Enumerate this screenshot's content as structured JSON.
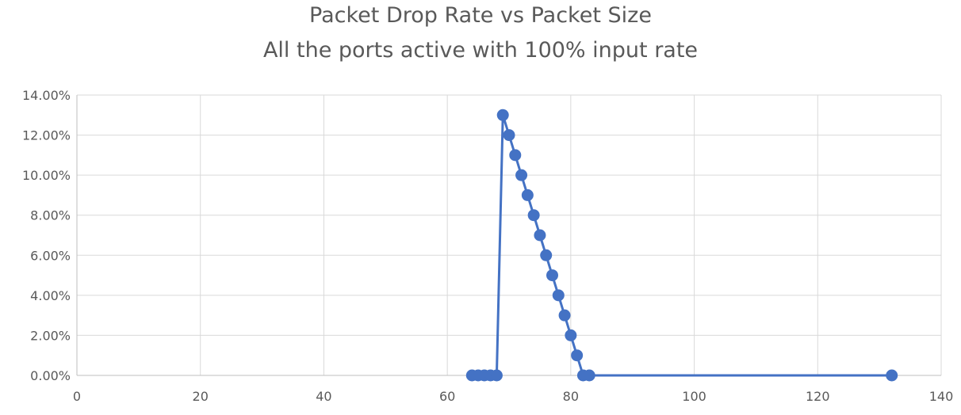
{
  "chart_data": {
    "type": "scatter",
    "title": "Packet Drop Rate vs Packet Size",
    "subtitle": "All the ports active with 100% input rate",
    "xlim": [
      0,
      140
    ],
    "ylim": [
      0,
      0.14
    ],
    "x_ticks": [
      "0",
      "20",
      "40",
      "60",
      "80",
      "100",
      "120",
      "140"
    ],
    "y_ticks": [
      "0.00%",
      "2.00%",
      "4.00%",
      "6.00%",
      "8.00%",
      "10.00%",
      "12.00%",
      "14.00%"
    ],
    "grid": true,
    "series_color": "#4472c4",
    "series": [
      {
        "x": [
          64,
          65,
          66,
          67,
          68,
          69,
          70,
          71,
          72,
          73,
          74,
          75,
          76,
          77,
          78,
          79,
          80,
          81,
          82,
          83,
          132
        ],
        "y": [
          0,
          0,
          0,
          0,
          0,
          0.13,
          0.12,
          0.11,
          0.1,
          0.09,
          0.08,
          0.07,
          0.06,
          0.05,
          0.04,
          0.03,
          0.02,
          0.01,
          0,
          0,
          0
        ]
      }
    ]
  }
}
